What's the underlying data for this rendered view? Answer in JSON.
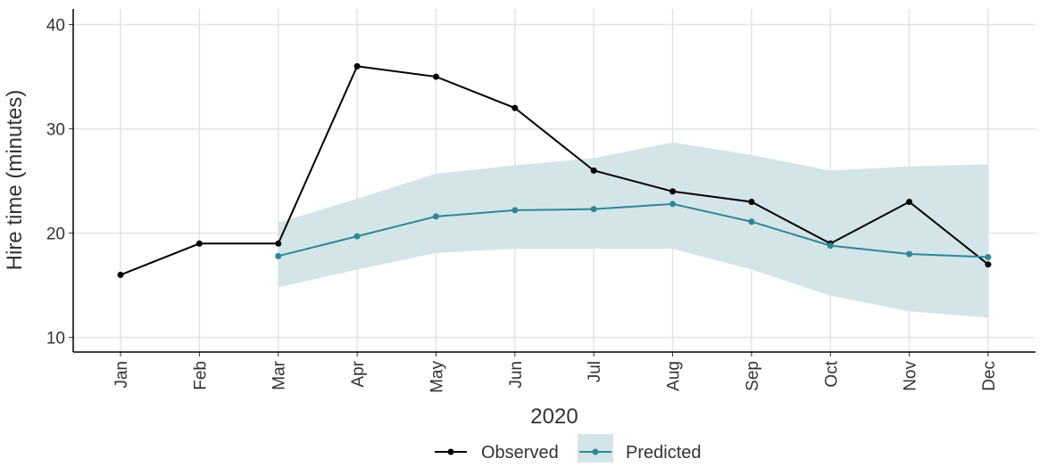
{
  "chart_data": {
    "type": "line",
    "x_label": "2020",
    "y_label": "Hire time (minutes)",
    "categories": [
      "Jan",
      "Feb",
      "Mar",
      "Apr",
      "May",
      "Jun",
      "Jul",
      "Aug",
      "Sep",
      "Oct",
      "Nov",
      "Dec"
    ],
    "series": [
      {
        "name": "Observed",
        "color": "#000000",
        "values": [
          16,
          19,
          19,
          36,
          35,
          32,
          26,
          24,
          23,
          19,
          23,
          17
        ]
      },
      {
        "name": "Predicted",
        "color": "#2f8796",
        "band_color": "#d3e5e8",
        "values": [
          null,
          null,
          17.8,
          19.7,
          21.6,
          22.2,
          22.3,
          22.8,
          21.1,
          18.8,
          18.0,
          17.7
        ],
        "lower": [
          null,
          null,
          14.8,
          16.5,
          18.1,
          18.5,
          18.5,
          18.5,
          16.5,
          14.0,
          12.5,
          11.9
        ],
        "upper": [
          null,
          null,
          21.0,
          23.3,
          25.7,
          26.5,
          27.2,
          28.7,
          27.5,
          26.0,
          26.4,
          26.6
        ]
      }
    ],
    "ylim": [
      8.6,
      41.5
    ],
    "yticks": [
      10,
      20,
      30,
      40
    ],
    "grid": true,
    "legend": "bottom"
  }
}
